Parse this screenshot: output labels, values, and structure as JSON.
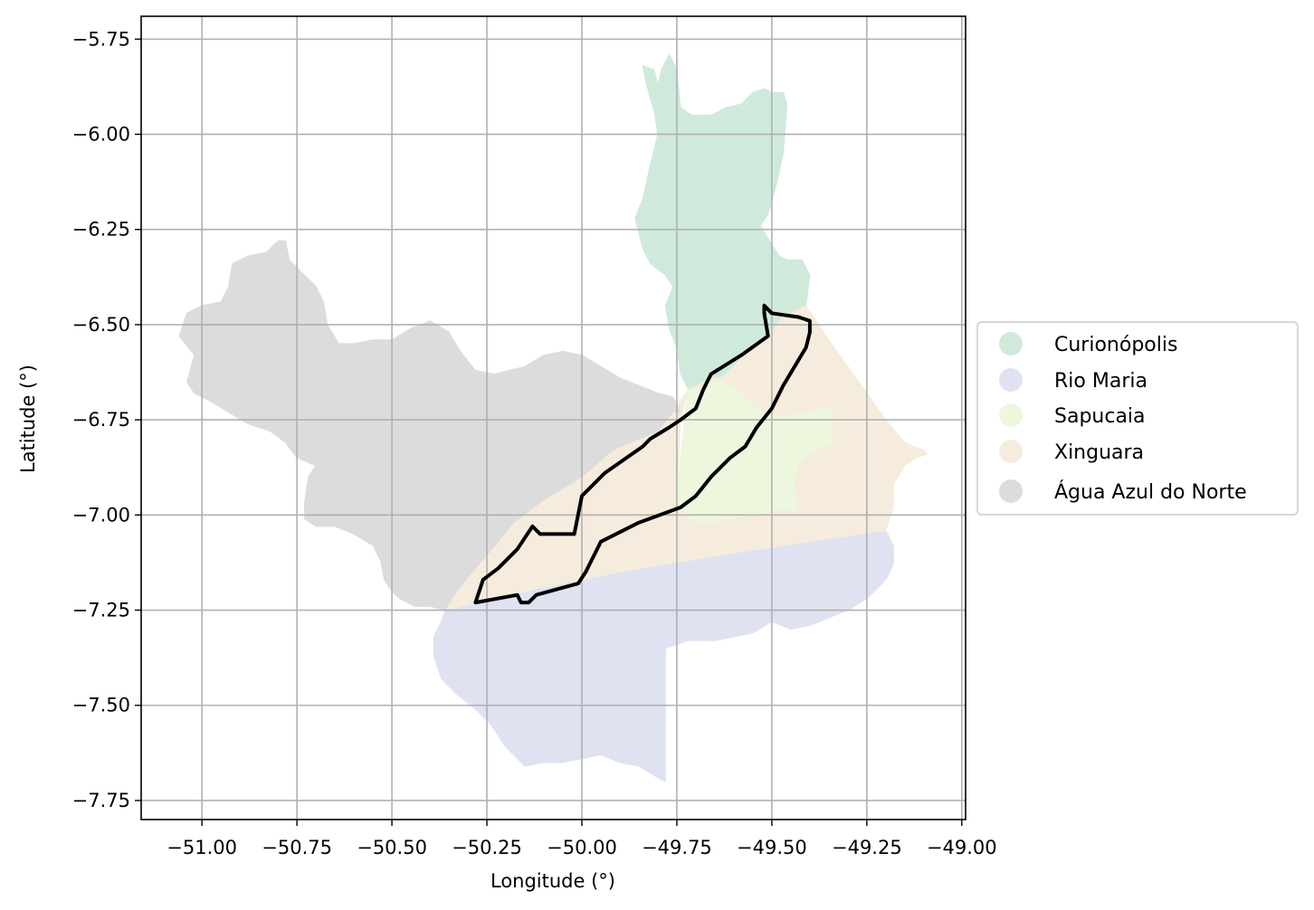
{
  "chart_data": {
    "type": "map",
    "xlabel": "Longitude (°)",
    "ylabel": "Latitude (°)",
    "xlim": [
      -51.16,
      -48.99
    ],
    "ylim": [
      -7.8,
      -5.69
    ],
    "grid": true,
    "x_ticks": [
      -51.0,
      -50.75,
      -50.5,
      -50.25,
      -50.0,
      -49.75,
      -49.5,
      -49.25,
      -49.0
    ],
    "x_tick_labels": [
      "−51.00",
      "−50.75",
      "−50.50",
      "−50.25",
      "−50.00",
      "−49.75",
      "−49.50",
      "−49.25",
      "−49.00"
    ],
    "y_ticks": [
      -5.75,
      -6.0,
      -6.25,
      -6.5,
      -6.75,
      -7.0,
      -7.25,
      -7.5,
      -7.75
    ],
    "y_tick_labels": [
      "−5.75",
      "−6.00",
      "−6.25",
      "−6.50",
      "−6.75",
      "−7.00",
      "−7.25",
      "−7.50",
      "−7.75"
    ],
    "legend_position": "right",
    "regions": [
      {
        "name": "Curionópolis",
        "color": "#cfeadb",
        "polygon": [
          [
            -49.84,
            -5.82
          ],
          [
            -49.81,
            -5.83
          ],
          [
            -49.8,
            -5.87
          ],
          [
            -49.79,
            -5.83
          ],
          [
            -49.77,
            -5.79
          ],
          [
            -49.75,
            -5.83
          ],
          [
            -49.74,
            -5.93
          ],
          [
            -49.71,
            -5.95
          ],
          [
            -49.66,
            -5.95
          ],
          [
            -49.62,
            -5.93
          ],
          [
            -49.58,
            -5.92
          ],
          [
            -49.55,
            -5.89
          ],
          [
            -49.52,
            -5.88
          ],
          [
            -49.5,
            -5.89
          ],
          [
            -49.47,
            -5.89
          ],
          [
            -49.46,
            -5.92
          ],
          [
            -49.47,
            -6.05
          ],
          [
            -49.49,
            -6.14
          ],
          [
            -49.51,
            -6.21
          ],
          [
            -49.53,
            -6.24
          ],
          [
            -49.5,
            -6.29
          ],
          [
            -49.48,
            -6.32
          ],
          [
            -49.46,
            -6.33
          ],
          [
            -49.42,
            -6.33
          ],
          [
            -49.4,
            -6.37
          ],
          [
            -49.41,
            -6.45
          ],
          [
            -49.43,
            -6.46
          ],
          [
            -49.47,
            -6.48
          ],
          [
            -49.52,
            -6.54
          ],
          [
            -49.57,
            -6.58
          ],
          [
            -49.62,
            -6.63
          ],
          [
            -49.67,
            -6.66
          ],
          [
            -49.72,
            -6.67
          ],
          [
            -49.74,
            -6.63
          ],
          [
            -49.75,
            -6.56
          ],
          [
            -49.77,
            -6.51
          ],
          [
            -49.78,
            -6.45
          ],
          [
            -49.76,
            -6.4
          ],
          [
            -49.78,
            -6.37
          ],
          [
            -49.82,
            -6.34
          ],
          [
            -49.84,
            -6.3
          ],
          [
            -49.86,
            -6.22
          ],
          [
            -49.84,
            -6.17
          ],
          [
            -49.82,
            -6.08
          ],
          [
            -49.8,
            -6.0
          ],
          [
            -49.81,
            -5.94
          ],
          [
            -49.83,
            -5.87
          ]
        ]
      },
      {
        "name": "Rio Maria",
        "color": "#dee2f1",
        "polygon": [
          [
            -50.36,
            -7.25
          ],
          [
            -50.1,
            -7.19
          ],
          [
            -49.9,
            -7.15
          ],
          [
            -49.6,
            -7.1
          ],
          [
            -49.4,
            -7.07
          ],
          [
            -49.2,
            -7.04
          ],
          [
            -49.18,
            -7.08
          ],
          [
            -49.18,
            -7.13
          ],
          [
            -49.2,
            -7.17
          ],
          [
            -49.25,
            -7.22
          ],
          [
            -49.3,
            -7.25
          ],
          [
            -49.35,
            -7.27
          ],
          [
            -49.4,
            -7.29
          ],
          [
            -49.45,
            -7.3
          ],
          [
            -49.5,
            -7.28
          ],
          [
            -49.55,
            -7.31
          ],
          [
            -49.6,
            -7.32
          ],
          [
            -49.65,
            -7.33
          ],
          [
            -49.72,
            -7.33
          ],
          [
            -49.78,
            -7.35
          ],
          [
            -49.78,
            -7.7
          ],
          [
            -49.8,
            -7.69
          ],
          [
            -49.85,
            -7.66
          ],
          [
            -49.9,
            -7.65
          ],
          [
            -49.95,
            -7.63
          ],
          [
            -50.0,
            -7.64
          ],
          [
            -50.05,
            -7.65
          ],
          [
            -50.1,
            -7.65
          ],
          [
            -50.15,
            -7.66
          ],
          [
            -50.2,
            -7.61
          ],
          [
            -50.24,
            -7.55
          ],
          [
            -50.28,
            -7.51
          ],
          [
            -50.33,
            -7.47
          ],
          [
            -50.37,
            -7.43
          ],
          [
            -50.39,
            -7.37
          ],
          [
            -50.39,
            -7.32
          ],
          [
            -50.37,
            -7.28
          ]
        ]
      },
      {
        "name": "Sapucaia",
        "color": "#edf7dd",
        "polygon": [
          [
            -49.72,
            -6.67
          ],
          [
            -49.65,
            -6.64
          ],
          [
            -49.6,
            -6.66
          ],
          [
            -49.55,
            -6.71
          ],
          [
            -49.52,
            -6.73
          ],
          [
            -49.46,
            -6.74
          ],
          [
            -49.38,
            -6.72
          ],
          [
            -49.34,
            -6.72
          ],
          [
            -49.34,
            -6.81
          ],
          [
            -49.38,
            -6.83
          ],
          [
            -49.41,
            -6.85
          ],
          [
            -49.43,
            -6.87
          ],
          [
            -49.44,
            -6.92
          ],
          [
            -49.43,
            -6.99
          ],
          [
            -49.48,
            -6.99
          ],
          [
            -49.55,
            -7.0
          ],
          [
            -49.6,
            -7.01
          ],
          [
            -49.66,
            -7.02
          ],
          [
            -49.7,
            -7.02
          ],
          [
            -49.73,
            -7.0
          ],
          [
            -49.75,
            -6.95
          ],
          [
            -49.74,
            -6.85
          ],
          [
            -49.73,
            -6.75
          ]
        ]
      },
      {
        "name": "Xinguara",
        "color": "#f5ecdd",
        "polygon": [
          [
            -50.36,
            -7.25
          ],
          [
            -50.33,
            -7.2
          ],
          [
            -50.28,
            -7.14
          ],
          [
            -50.22,
            -7.07
          ],
          [
            -50.18,
            -7.02
          ],
          [
            -50.1,
            -6.96
          ],
          [
            -50.05,
            -6.93
          ],
          [
            -50.0,
            -6.9
          ],
          [
            -49.92,
            -6.83
          ],
          [
            -49.85,
            -6.8
          ],
          [
            -49.8,
            -6.78
          ],
          [
            -49.76,
            -6.73
          ],
          [
            -49.72,
            -6.67
          ],
          [
            -49.74,
            -6.75
          ],
          [
            -49.75,
            -6.95
          ],
          [
            -49.73,
            -7.0
          ],
          [
            -49.7,
            -7.02
          ],
          [
            -49.66,
            -7.02
          ],
          [
            -49.6,
            -7.01
          ],
          [
            -49.55,
            -7.0
          ],
          [
            -49.48,
            -6.99
          ],
          [
            -49.43,
            -6.99
          ],
          [
            -49.44,
            -6.92
          ],
          [
            -49.43,
            -6.87
          ],
          [
            -49.41,
            -6.85
          ],
          [
            -49.38,
            -6.83
          ],
          [
            -49.34,
            -6.81
          ],
          [
            -49.34,
            -6.72
          ],
          [
            -49.38,
            -6.72
          ],
          [
            -49.46,
            -6.74
          ],
          [
            -49.52,
            -6.73
          ],
          [
            -49.55,
            -6.71
          ],
          [
            -49.6,
            -6.66
          ],
          [
            -49.65,
            -6.64
          ],
          [
            -49.72,
            -6.67
          ],
          [
            -49.67,
            -6.66
          ],
          [
            -49.62,
            -6.63
          ],
          [
            -49.57,
            -6.58
          ],
          [
            -49.52,
            -6.54
          ],
          [
            -49.47,
            -6.48
          ],
          [
            -49.43,
            -6.46
          ],
          [
            -49.41,
            -6.45
          ],
          [
            -49.39,
            -6.48
          ],
          [
            -49.35,
            -6.54
          ],
          [
            -49.3,
            -6.61
          ],
          [
            -49.25,
            -6.68
          ],
          [
            -49.2,
            -6.75
          ],
          [
            -49.15,
            -6.81
          ],
          [
            -49.1,
            -6.83
          ],
          [
            -49.09,
            -6.84
          ],
          [
            -49.12,
            -6.85
          ],
          [
            -49.15,
            -6.87
          ],
          [
            -49.18,
            -6.92
          ],
          [
            -49.18,
            -6.98
          ],
          [
            -49.2,
            -7.04
          ],
          [
            -49.4,
            -7.07
          ],
          [
            -49.6,
            -7.1
          ],
          [
            -49.9,
            -7.15
          ],
          [
            -50.1,
            -7.19
          ]
        ]
      },
      {
        "name": "Água Azul do Norte",
        "color": "#dcdcdc",
        "polygon": [
          [
            -50.36,
            -7.25
          ],
          [
            -50.4,
            -7.24
          ],
          [
            -50.44,
            -7.24
          ],
          [
            -50.48,
            -7.22
          ],
          [
            -50.5,
            -7.2
          ],
          [
            -50.52,
            -7.17
          ],
          [
            -50.53,
            -7.12
          ],
          [
            -50.55,
            -7.08
          ],
          [
            -50.6,
            -7.05
          ],
          [
            -50.65,
            -7.03
          ],
          [
            -50.7,
            -7.03
          ],
          [
            -50.73,
            -7.01
          ],
          [
            -50.73,
            -6.97
          ],
          [
            -50.72,
            -6.9
          ],
          [
            -50.7,
            -6.87
          ],
          [
            -50.75,
            -6.85
          ],
          [
            -50.78,
            -6.81
          ],
          [
            -50.82,
            -6.78
          ],
          [
            -50.88,
            -6.76
          ],
          [
            -50.93,
            -6.73
          ],
          [
            -50.98,
            -6.7
          ],
          [
            -51.02,
            -6.68
          ],
          [
            -51.04,
            -6.65
          ],
          [
            -51.02,
            -6.58
          ],
          [
            -51.06,
            -6.53
          ],
          [
            -51.04,
            -6.47
          ],
          [
            -51.0,
            -6.45
          ],
          [
            -50.95,
            -6.44
          ],
          [
            -50.93,
            -6.4
          ],
          [
            -50.92,
            -6.34
          ],
          [
            -50.88,
            -6.32
          ],
          [
            -50.83,
            -6.31
          ],
          [
            -50.8,
            -6.28
          ],
          [
            -50.78,
            -6.28
          ],
          [
            -50.77,
            -6.33
          ],
          [
            -50.73,
            -6.37
          ],
          [
            -50.7,
            -6.4
          ],
          [
            -50.68,
            -6.44
          ],
          [
            -50.67,
            -6.5
          ],
          [
            -50.64,
            -6.55
          ],
          [
            -50.6,
            -6.55
          ],
          [
            -50.55,
            -6.54
          ],
          [
            -50.5,
            -6.54
          ],
          [
            -50.45,
            -6.51
          ],
          [
            -50.4,
            -6.49
          ],
          [
            -50.35,
            -6.52
          ],
          [
            -50.32,
            -6.57
          ],
          [
            -50.28,
            -6.62
          ],
          [
            -50.23,
            -6.63
          ],
          [
            -50.19,
            -6.62
          ],
          [
            -50.15,
            -6.61
          ],
          [
            -50.1,
            -6.58
          ],
          [
            -50.05,
            -6.57
          ],
          [
            -50.0,
            -6.58
          ],
          [
            -49.95,
            -6.61
          ],
          [
            -49.9,
            -6.64
          ],
          [
            -49.85,
            -6.66
          ],
          [
            -49.8,
            -6.68
          ],
          [
            -49.76,
            -6.69
          ],
          [
            -49.74,
            -6.73
          ],
          [
            -49.76,
            -6.73
          ],
          [
            -49.8,
            -6.78
          ],
          [
            -49.85,
            -6.8
          ],
          [
            -49.92,
            -6.83
          ],
          [
            -50.0,
            -6.9
          ],
          [
            -50.05,
            -6.93
          ],
          [
            -50.1,
            -6.96
          ],
          [
            -50.18,
            -7.02
          ],
          [
            -50.22,
            -7.07
          ],
          [
            -50.28,
            -7.14
          ],
          [
            -50.33,
            -7.2
          ]
        ]
      }
    ],
    "outline": {
      "color": "#000000",
      "polygon": [
        [
          -50.28,
          -7.23
        ],
        [
          -50.17,
          -7.21
        ],
        [
          -50.16,
          -7.23
        ],
        [
          -50.14,
          -7.23
        ],
        [
          -50.12,
          -7.21
        ],
        [
          -50.01,
          -7.18
        ],
        [
          -49.99,
          -7.15
        ],
        [
          -49.97,
          -7.11
        ],
        [
          -49.95,
          -7.07
        ],
        [
          -49.85,
          -7.02
        ],
        [
          -49.74,
          -6.98
        ],
        [
          -49.7,
          -6.95
        ],
        [
          -49.66,
          -6.9
        ],
        [
          -49.61,
          -6.85
        ],
        [
          -49.57,
          -6.82
        ],
        [
          -49.54,
          -6.77
        ],
        [
          -49.5,
          -6.72
        ],
        [
          -49.47,
          -6.66
        ],
        [
          -49.44,
          -6.61
        ],
        [
          -49.41,
          -6.56
        ],
        [
          -49.4,
          -6.52
        ],
        [
          -49.4,
          -6.49
        ],
        [
          -49.43,
          -6.48
        ],
        [
          -49.5,
          -6.47
        ],
        [
          -49.52,
          -6.45
        ],
        [
          -49.52,
          -6.47
        ],
        [
          -49.51,
          -6.53
        ],
        [
          -49.58,
          -6.58
        ],
        [
          -49.66,
          -6.63
        ],
        [
          -49.68,
          -6.67
        ],
        [
          -49.7,
          -6.72
        ],
        [
          -49.74,
          -6.75
        ],
        [
          -49.77,
          -6.77
        ],
        [
          -49.82,
          -6.8
        ],
        [
          -49.84,
          -6.82
        ],
        [
          -49.94,
          -6.89
        ],
        [
          -50.0,
          -6.95
        ],
        [
          -50.02,
          -7.05
        ],
        [
          -50.07,
          -7.05
        ],
        [
          -50.11,
          -7.05
        ],
        [
          -50.13,
          -7.03
        ],
        [
          -50.17,
          -7.09
        ],
        [
          -50.22,
          -7.14
        ],
        [
          -50.26,
          -7.17
        ],
        [
          -50.27,
          -7.2
        ]
      ]
    }
  }
}
